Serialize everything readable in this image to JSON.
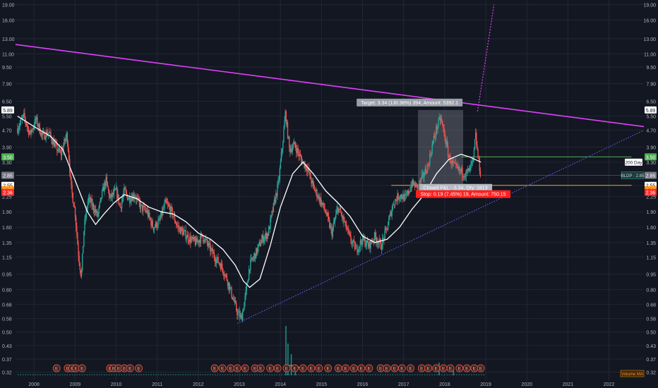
{
  "colors": {
    "background": "#131722",
    "grid": "#232733",
    "axis_text": "#b2b5be",
    "up": "#26a69a",
    "down": "#ef5350",
    "ma200": "#ffffff",
    "resistance": "#e040fb",
    "support": "#5c5ce6",
    "target_zone": "#8a8f9a",
    "stop_zone": "#ff1f1f",
    "green_line": "#4caf50",
    "orange_line": "#ff9800",
    "earnings": "#e5533c",
    "volume": "#26a69a"
  },
  "chart_data": {
    "type": "candlestick",
    "symbol_tag": "BLDP",
    "price_axis": {
      "scale": "log",
      "ticks": [
        "19.00",
        "16.00",
        "13.00",
        "11.00",
        "9.50",
        "7.90",
        "6.50",
        "5.50",
        "4.70",
        "3.90",
        "3.30",
        "2.85",
        "2.55",
        "2.25",
        "1.90",
        "1.60",
        "1.35",
        "1.15",
        "0.95",
        "0.80",
        "0.68",
        "0.58",
        "0.50",
        "0.43",
        "0.37",
        "0.32"
      ],
      "range": [
        0.29,
        20
      ]
    },
    "time_axis": {
      "ticks": [
        "2008",
        "2009",
        "2010",
        "2011",
        "2012",
        "2013",
        "2014",
        "2015",
        "2016",
        "2017",
        "2018",
        "2019",
        "2020",
        "2021",
        "2022"
      ],
      "range": [
        2007.55,
        2022.85
      ]
    },
    "price_tags": [
      {
        "text": "5.89",
        "value": 5.89,
        "color": "#ffffff",
        "fg": "#131722"
      },
      {
        "text": "3.50",
        "value": 3.5,
        "color": "#4caf50",
        "fg": "#ffffff"
      },
      {
        "text": "2.85",
        "value": 2.85,
        "color": "#787b86",
        "fg": "#ffffff"
      },
      {
        "text": "2.55",
        "value": 2.55,
        "color": "#ffffff",
        "fg": "#131722"
      },
      {
        "text": "2.43",
        "value": 2.43,
        "color": "#ff9800",
        "fg": "#ffffff"
      },
      {
        "text": "2.36",
        "value": 2.36,
        "color": "#ff2a2a",
        "fg": "#ffffff"
      }
    ],
    "right_tags": [
      {
        "text": "3.30",
        "value": 3.3
      },
      {
        "text": "2.55",
        "value": 2.55
      }
    ],
    "ma_label": "200 Day",
    "ticker_label": "BLDP · 2.85",
    "anchor_points": [
      [
        2007.6,
        4.8
      ],
      [
        2007.75,
        5.5
      ],
      [
        2007.9,
        4.5
      ],
      [
        2008.05,
        5.3
      ],
      [
        2008.2,
        4.4
      ],
      [
        2008.35,
        4.6
      ],
      [
        2008.5,
        4.0
      ],
      [
        2008.65,
        3.6
      ],
      [
        2008.8,
        4.5
      ],
      [
        2008.85,
        3.5
      ],
      [
        2008.9,
        2.5
      ],
      [
        2009.0,
        1.9
      ],
      [
        2009.08,
        1.2
      ],
      [
        2009.15,
        0.92
      ],
      [
        2009.22,
        1.6
      ],
      [
        2009.32,
        2.2
      ],
      [
        2009.45,
        2.0
      ],
      [
        2009.55,
        1.8
      ],
      [
        2009.65,
        2.3
      ],
      [
        2009.75,
        2.7
      ],
      [
        2009.85,
        2.2
      ],
      [
        2010.0,
        2.4
      ],
      [
        2010.1,
        2.0
      ],
      [
        2010.2,
        2.4
      ],
      [
        2010.3,
        2.2
      ],
      [
        2010.45,
        2.3
      ],
      [
        2010.6,
        2.0
      ],
      [
        2010.75,
        1.9
      ],
      [
        2010.9,
        1.6
      ],
      [
        2011.05,
        1.7
      ],
      [
        2011.2,
        2.1
      ],
      [
        2011.35,
        1.9
      ],
      [
        2011.5,
        1.6
      ],
      [
        2011.65,
        1.5
      ],
      [
        2011.8,
        1.4
      ],
      [
        2011.95,
        1.35
      ],
      [
        2012.1,
        1.45
      ],
      [
        2012.25,
        1.3
      ],
      [
        2012.4,
        1.15
      ],
      [
        2012.55,
        1.05
      ],
      [
        2012.7,
        0.9
      ],
      [
        2012.85,
        0.72
      ],
      [
        2012.95,
        0.62
      ],
      [
        2013.05,
        0.58
      ],
      [
        2013.15,
        0.75
      ],
      [
        2013.25,
        1.05
      ],
      [
        2013.4,
        1.2
      ],
      [
        2013.55,
        1.4
      ],
      [
        2013.7,
        1.5
      ],
      [
        2013.85,
        2.1
      ],
      [
        2013.95,
        2.6
      ],
      [
        2014.05,
        4.0
      ],
      [
        2014.12,
        5.7
      ],
      [
        2014.22,
        3.8
      ],
      [
        2014.35,
        4.0
      ],
      [
        2014.5,
        3.4
      ],
      [
        2014.65,
        3.1
      ],
      [
        2014.8,
        2.5
      ],
      [
        2014.95,
        2.2
      ],
      [
        2015.1,
        1.9
      ],
      [
        2015.25,
        1.5
      ],
      [
        2015.4,
        2.0
      ],
      [
        2015.55,
        1.7
      ],
      [
        2015.7,
        1.4
      ],
      [
        2015.85,
        1.25
      ],
      [
        2016.0,
        1.4
      ],
      [
        2016.15,
        1.3
      ],
      [
        2016.3,
        1.45
      ],
      [
        2016.45,
        1.3
      ],
      [
        2016.6,
        1.6
      ],
      [
        2016.75,
        2.1
      ],
      [
        2016.9,
        2.3
      ],
      [
        2017.05,
        2.2
      ],
      [
        2017.2,
        2.6
      ],
      [
        2017.35,
        2.5
      ],
      [
        2017.5,
        2.9
      ],
      [
        2017.6,
        3.2
      ],
      [
        2017.7,
        4.0
      ],
      [
        2017.8,
        4.8
      ],
      [
        2017.9,
        5.4
      ],
      [
        2018.0,
        4.4
      ],
      [
        2018.1,
        3.5
      ],
      [
        2018.2,
        3.2
      ],
      [
        2018.35,
        3.0
      ],
      [
        2018.5,
        2.9
      ],
      [
        2018.6,
        3.0
      ],
      [
        2018.7,
        3.4
      ],
      [
        2018.75,
        4.5
      ],
      [
        2018.8,
        3.6
      ],
      [
        2018.88,
        2.85
      ]
    ],
    "ma_points": [
      [
        2007.6,
        5.5
      ],
      [
        2008.0,
        4.9
      ],
      [
        2008.4,
        4.4
      ],
      [
        2008.7,
        3.8
      ],
      [
        2009.0,
        2.7
      ],
      [
        2009.3,
        1.9
      ],
      [
        2009.5,
        1.65
      ],
      [
        2009.7,
        1.85
      ],
      [
        2009.95,
        2.1
      ],
      [
        2010.2,
        2.3
      ],
      [
        2010.5,
        2.2
      ],
      [
        2010.8,
        2.0
      ],
      [
        2011.1,
        1.9
      ],
      [
        2011.4,
        1.85
      ],
      [
        2011.7,
        1.7
      ],
      [
        2012.0,
        1.5
      ],
      [
        2012.3,
        1.4
      ],
      [
        2012.6,
        1.25
      ],
      [
        2012.9,
        1.05
      ],
      [
        2013.1,
        0.88
      ],
      [
        2013.25,
        0.82
      ],
      [
        2013.5,
        0.9
      ],
      [
        2013.75,
        1.3
      ],
      [
        2014.0,
        2.0
      ],
      [
        2014.3,
        2.9
      ],
      [
        2014.55,
        3.3
      ],
      [
        2014.8,
        2.9
      ],
      [
        2015.1,
        2.4
      ],
      [
        2015.4,
        2.1
      ],
      [
        2015.7,
        1.8
      ],
      [
        2016.0,
        1.45
      ],
      [
        2016.3,
        1.35
      ],
      [
        2016.6,
        1.4
      ],
      [
        2016.9,
        1.6
      ],
      [
        2017.2,
        1.95
      ],
      [
        2017.5,
        2.3
      ],
      [
        2017.8,
        2.9
      ],
      [
        2018.1,
        3.4
      ],
      [
        2018.4,
        3.6
      ],
      [
        2018.6,
        3.5
      ],
      [
        2018.88,
        3.3
      ]
    ],
    "resistance_line": {
      "from": [
        2007.55,
        12.2
      ],
      "to": [
        2022.85,
        4.9
      ]
    },
    "support_line": {
      "from": [
        2012.95,
        0.55
      ],
      "to": [
        2022.85,
        4.7
      ]
    },
    "projection_line": {
      "from": [
        2018.8,
        5.8
      ],
      "to": [
        2019.2,
        19.0
      ]
    },
    "hlines": [
      {
        "value": 3.5,
        "from": 2018.4,
        "to": 2022.55,
        "color": "#4caf50"
      },
      {
        "value": 2.55,
        "from": 2016.7,
        "to": 2022.55,
        "color": "#e9a33c"
      },
      {
        "value": 2.85,
        "from": 2007.55,
        "to": 2022.55,
        "color": "#3a4a5a"
      }
    ],
    "position": {
      "entry": 2.55,
      "target": 5.89,
      "stop": 2.36,
      "x_from": 2017.35,
      "x_to": 2018.45,
      "target_label": "Target: 3.34 (130.98%) 394, Amount: 5392.1",
      "closed_label": "Closed P&L: -3.34, Qty: 1813",
      "ratio_label": "Risk/Reward Ratio: 17.58",
      "stop_label": "Stop: 0.19 (7.45%) 19, Amount: 750.15"
    },
    "earnings_x": [
      2008.55,
      2008.82,
      2008.93,
      2009.02,
      2009.17,
      2009.85,
      2009.94,
      2010.06,
      2010.2,
      2010.34,
      2010.55,
      2012.4,
      2012.59,
      2012.79,
      2012.95,
      2013.14,
      2013.38,
      2013.52,
      2013.75,
      2013.93,
      2014.15,
      2014.35,
      2014.55,
      2014.75,
      2014.94,
      2015.16,
      2015.41,
      2015.59,
      2015.79,
      2015.97,
      2016.16,
      2016.44,
      2016.59,
      2016.78,
      2016.96,
      2017.17,
      2017.44,
      2017.6,
      2017.79,
      2017.97,
      2018.14,
      2018.36,
      2018.54,
      2018.72,
      2018.88
    ],
    "earnings_label": "E",
    "volume_label": "Volume MA",
    "volume_spikes": [
      [
        2014.12,
        70
      ],
      [
        2014.17,
        45
      ],
      [
        2014.25,
        30
      ],
      [
        2014.35,
        15
      ],
      [
        2017.85,
        18
      ],
      [
        2018.2,
        12
      ]
    ]
  }
}
